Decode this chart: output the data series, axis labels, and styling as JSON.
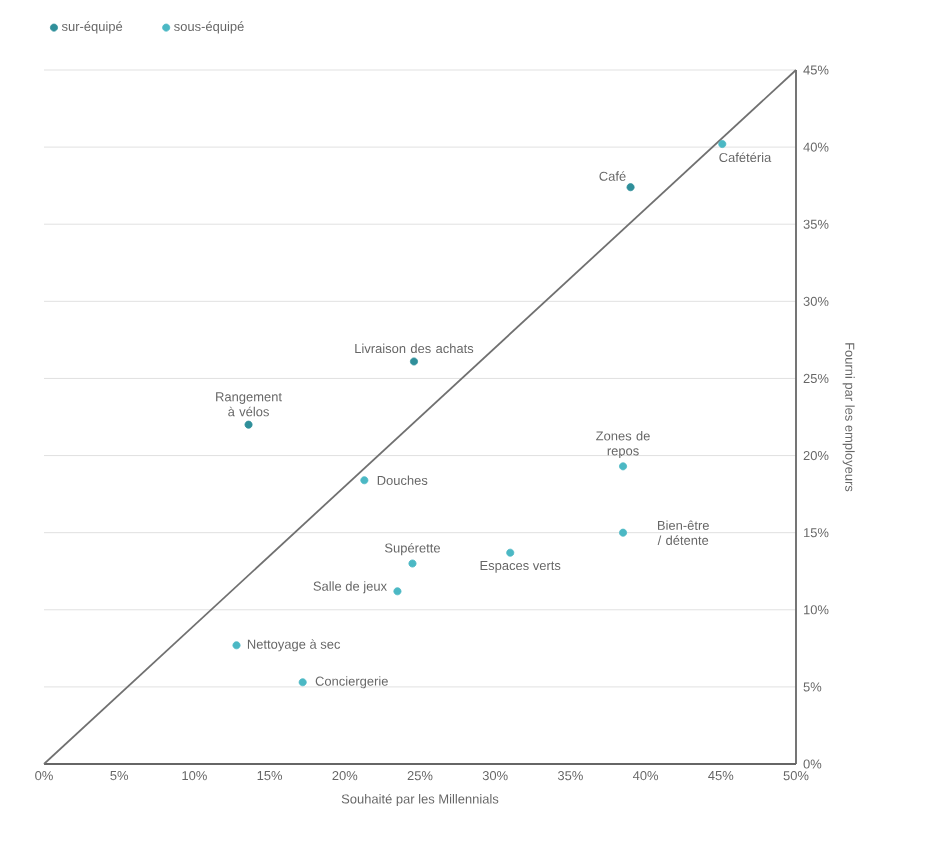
{
  "chart_data": {
    "type": "scatter",
    "xlabel": "Souhaité par les Millennials",
    "ylabel": "Fourni par les employeurs",
    "xlim": [
      0,
      50
    ],
    "xticks": [
      {
        "value": 0,
        "label": "0%"
      },
      {
        "value": 5,
        "label": "5%"
      },
      {
        "value": 10,
        "label": "10%"
      },
      {
        "value": 15,
        "label": "15%"
      },
      {
        "value": 20,
        "label": "20%"
      },
      {
        "value": 25,
        "label": "25%"
      },
      {
        "value": 30,
        "label": "30%"
      },
      {
        "value": 35,
        "label": "35%"
      },
      {
        "value": 40,
        "label": "40%"
      },
      {
        "value": 45,
        "label": "45%"
      },
      {
        "value": 50,
        "label": "50%"
      }
    ],
    "ylim": [
      0,
      45
    ],
    "yticks": [
      {
        "value": 0,
        "label": "0%"
      },
      {
        "value": 5,
        "label": "5%"
      },
      {
        "value": 10,
        "label": "10%"
      },
      {
        "value": 15,
        "label": "15%"
      },
      {
        "value": 20,
        "label": "20%"
      },
      {
        "value": 25,
        "label": "25%"
      },
      {
        "value": 30,
        "label": "30%"
      },
      {
        "value": 35,
        "label": "35%"
      },
      {
        "value": 40,
        "label": "40%"
      },
      {
        "value": 45,
        "label": "45%"
      }
    ],
    "grid": "y",
    "legend": "top left",
    "series": [
      {
        "name": "sur-équipé",
        "marker": "circle",
        "color": "#2f8f9a",
        "x": [
          39.0,
          24.6,
          13.6
        ],
        "values": [
          37.4,
          26.1,
          22.0
        ]
      },
      {
        "name": "sous-équipé",
        "marker": "circle",
        "color": "#4bb8c4",
        "x": [
          45.1,
          38.5,
          21.3,
          38.5,
          24.5,
          31.0,
          23.5,
          12.8,
          17.2
        ],
        "values": [
          40.2,
          19.3,
          18.4,
          15.0,
          13.0,
          13.7,
          11.2,
          7.7,
          5.3
        ]
      },
      {
        "type": "line",
        "color": "#707070",
        "x": [
          0,
          50
        ],
        "values": [
          0,
          45
        ]
      }
    ],
    "annotations": [
      {
        "text": "Café",
        "x": 39.0,
        "y": 37.4
      },
      {
        "text": "Cafétéria",
        "x": 45.1,
        "y": 40.2
      },
      {
        "text": "Livraison des achats",
        "x": 24.6,
        "y": 26.1
      },
      {
        "text": "Rangement à vélos",
        "x": 13.6,
        "y": 22.0
      },
      {
        "text": "Zones de repos",
        "x": 38.5,
        "y": 19.3
      },
      {
        "text": "Douches",
        "x": 21.3,
        "y": 18.4
      },
      {
        "text": "Bien-être / détente",
        "x": 38.5,
        "y": 15.0
      },
      {
        "text": "Supérette",
        "x": 24.5,
        "y": 13.0
      },
      {
        "text": "Espaces verts",
        "x": 31.0,
        "y": 13.7
      },
      {
        "text": "Salle de jeux",
        "x": 23.5,
        "y": 11.2
      },
      {
        "text": "Nettoyage à sec",
        "x": 12.8,
        "y": 7.7
      },
      {
        "text": "Conciergerie",
        "x": 17.2,
        "y": 5.3
      }
    ]
  }
}
